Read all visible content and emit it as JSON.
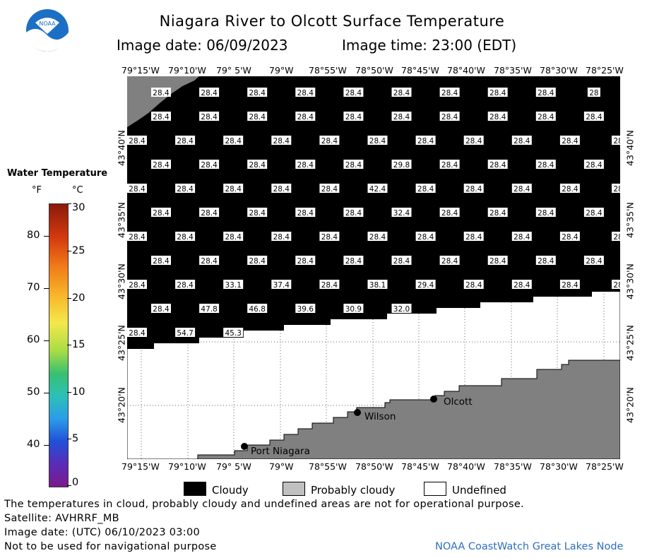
{
  "header": {
    "title": "Niagara River to Olcott Surface Temperature",
    "image_date": "Image date: 06/09/2023",
    "image_time": "Image time: 23:00 (EDT)"
  },
  "logo": {
    "text": "NOAA"
  },
  "map": {
    "lon_labels": [
      "79°15'W",
      "79°10'W",
      "79° 5'W",
      "79°W",
      "78°55'W",
      "78°50'W",
      "78°45'W",
      "78°40'W",
      "78°35'W",
      "78°30'W",
      "78°25'W"
    ],
    "lat_labels": [
      "43°40'N",
      "43°35'N",
      "43°30'N",
      "43°25'N",
      "43°20'N"
    ],
    "places": [
      {
        "name": "Olcott"
      },
      {
        "name": "Wilson"
      },
      {
        "name": "Port Niagara"
      }
    ],
    "rows": [
      [
        "28.4",
        "28.4",
        "28.4",
        "28.4",
        "28.4",
        "28.4",
        "28.4",
        "28.4",
        "28.4",
        "28"
      ],
      [
        "28.4",
        "28.4",
        "28.4",
        "28.4",
        "28.4",
        "28.4",
        "28.4",
        "28.4",
        "28.4",
        "28.4"
      ],
      [
        "28.4",
        "28.4",
        "28.4",
        "28.4",
        "28.4",
        "28.4",
        "28.4",
        "28.4",
        "28.4",
        "28.4",
        "28"
      ],
      [
        "28.4",
        "28.4",
        "28.4",
        "28.4",
        "28.4",
        "29.8",
        "28.4",
        "28.4",
        "28.4",
        "28.4"
      ],
      [
        "28.4",
        "28.4",
        "28.4",
        "28.4",
        "28.4",
        "42.4",
        "28.4",
        "28.4",
        "28.4",
        "28.4",
        "28"
      ],
      [
        "28.4",
        "28.4",
        "28.4",
        "28.4",
        "28.4",
        "32.4",
        "28.4",
        "28.4",
        "28.4",
        "28.4"
      ],
      [
        "28.4",
        "28.4",
        "28.4",
        "28.4",
        "28.4",
        "28.4",
        "28.4",
        "28.4",
        "28.4",
        "28.4",
        "28"
      ],
      [
        "28.4",
        "28.4",
        "28.4",
        "28.4",
        "28.4",
        "28.4",
        "28.4",
        "28.4",
        "28.4",
        "28.4"
      ],
      [
        "28.4",
        "28.4",
        "33.1",
        "37.4",
        "28.4",
        "38.1",
        "29.4",
        "28.4",
        "28.4",
        "28.4",
        "28"
      ],
      [
        "28.4",
        "47.8",
        "46.8",
        "39.6",
        "30.9",
        "32.0"
      ],
      [
        "28.4",
        "54.7",
        "45.3"
      ]
    ]
  },
  "color_scale": {
    "title": "Water Temperature",
    "unit_f": "°F",
    "unit_c": "°C",
    "f_ticks": [
      "80",
      "70",
      "60",
      "50",
      "40"
    ],
    "c_ticks": [
      "30",
      "25",
      "20",
      "15",
      "10",
      "5",
      "0"
    ],
    "range_c": [
      0,
      30
    ]
  },
  "legend": {
    "cloudy": "Cloudy",
    "probably_cloudy": "Probably cloudy",
    "undefined": "Undefined",
    "colors": {
      "cloudy": "#000000",
      "probably_cloudy": "#c0c0c0",
      "undefined": "#ffffff",
      "land": "#808080"
    }
  },
  "footer": {
    "disclaimer": "The temperatures in cloud, probably cloudy and undefined areas are not for operational purpose.",
    "satellite": "Satellite: AVHRRF_MB",
    "utc_date": "Image date: (UTC) 06/10/2023  03:00",
    "nav_note": "Not to be used for navigational purpose",
    "credit": "NOAA CoastWatch Great Lakes Node"
  }
}
